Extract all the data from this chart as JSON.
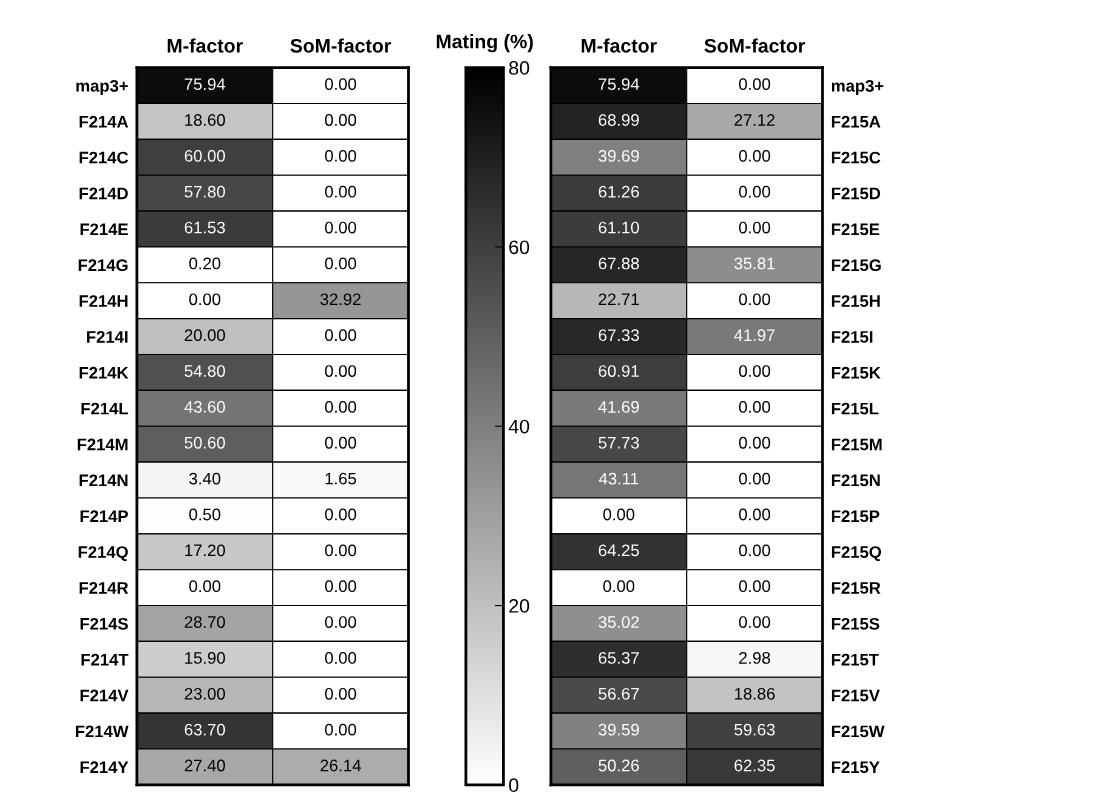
{
  "chart_data": [
    {
      "type": "heatmap",
      "categories": [
        "M-factor",
        "SoM-factor"
      ],
      "y_categories": [
        "map3+",
        "F214A",
        "F214C",
        "F214D",
        "F214E",
        "F214G",
        "F214H",
        "F214I",
        "F214K",
        "F214L",
        "F214M",
        "F214N",
        "F214P",
        "F214Q",
        "F214R",
        "F214S",
        "F214T",
        "F214V",
        "F214W",
        "F214Y"
      ],
      "cells": [
        [
          75.94,
          0.0
        ],
        [
          18.6,
          0.0
        ],
        [
          60.0,
          0.0
        ],
        [
          57.8,
          0.0
        ],
        [
          61.53,
          0.0
        ],
        [
          0.2,
          0.0
        ],
        [
          0.0,
          32.92
        ],
        [
          20.0,
          0.0
        ],
        [
          54.8,
          0.0
        ],
        [
          43.6,
          0.0
        ],
        [
          50.6,
          0.0
        ],
        [
          3.4,
          1.65
        ],
        [
          0.5,
          0.0
        ],
        [
          17.2,
          0.0
        ],
        [
          0.0,
          0.0
        ],
        [
          28.7,
          0.0
        ],
        [
          15.9,
          0.0
        ],
        [
          23.0,
          0.0
        ],
        [
          63.7,
          0.0
        ],
        [
          27.4,
          26.14
        ]
      ],
      "cell_labels": [
        [
          "75.94",
          "0.00"
        ],
        [
          "18.60",
          "0.00"
        ],
        [
          "60.00",
          "0.00"
        ],
        [
          "57.80",
          "0.00"
        ],
        [
          "61.53",
          "0.00"
        ],
        [
          "0.20",
          "0.00"
        ],
        [
          "0.00",
          "32.92"
        ],
        [
          "20.00",
          "0.00"
        ],
        [
          "54.80",
          "0.00"
        ],
        [
          "43.60",
          "0.00"
        ],
        [
          "50.60",
          "0.00"
        ],
        [
          "3.40",
          "1.65"
        ],
        [
          "0.50",
          "0.00"
        ],
        [
          "17.20",
          "0.00"
        ],
        [
          "0.00",
          "0.00"
        ],
        [
          "28.70",
          "0.00"
        ],
        [
          "15.90",
          "0.00"
        ],
        [
          "23.00",
          "0.00"
        ],
        [
          "63.70",
          "0.00"
        ],
        [
          "27.40",
          "26.14"
        ]
      ],
      "clim": [
        0,
        80
      ],
      "cticks": [
        0,
        20,
        40,
        60,
        80
      ],
      "clabel": "Mating (%)"
    },
    {
      "type": "heatmap",
      "categories": [
        "M-factor",
        "SoM-factor"
      ],
      "y_categories": [
        "map3+",
        "F215A",
        "F215C",
        "F215D",
        "F215E",
        "F215G",
        "F215H",
        "F215I",
        "F215K",
        "F215L",
        "F215M",
        "F215N",
        "F215P",
        "F215Q",
        "F215R",
        "F215S",
        "F215T",
        "F215V",
        "F215W",
        "F215Y"
      ],
      "cells": [
        [
          75.94,
          0.0
        ],
        [
          68.99,
          27.12
        ],
        [
          39.69,
          0.0
        ],
        [
          61.26,
          0.0
        ],
        [
          61.1,
          0.0
        ],
        [
          67.88,
          35.81
        ],
        [
          22.71,
          0.0
        ],
        [
          67.33,
          41.97
        ],
        [
          60.91,
          0.0
        ],
        [
          41.69,
          0.0
        ],
        [
          57.73,
          0.0
        ],
        [
          43.11,
          0.0
        ],
        [
          0.0,
          0.0
        ],
        [
          64.25,
          0.0
        ],
        [
          0.0,
          0.0
        ],
        [
          35.02,
          0.0
        ],
        [
          65.37,
          2.98
        ],
        [
          56.67,
          18.86
        ],
        [
          39.59,
          59.63
        ],
        [
          50.26,
          62.35
        ]
      ],
      "cell_labels": [
        [
          "75.94",
          "0.00"
        ],
        [
          "68.99",
          "27.12"
        ],
        [
          "39.69",
          "0.00"
        ],
        [
          "61.26",
          "0.00"
        ],
        [
          "61.10",
          "0.00"
        ],
        [
          "67.88",
          "35.81"
        ],
        [
          "22.71",
          "0.00"
        ],
        [
          "67.33",
          "41.97"
        ],
        [
          "60.91",
          "0.00"
        ],
        [
          "41.69",
          "0.00"
        ],
        [
          "57.73",
          "0.00"
        ],
        [
          "43.11",
          "0.00"
        ],
        [
          "0.00",
          "0.00"
        ],
        [
          "64.25",
          "0.00"
        ],
        [
          "0.00",
          "0.00"
        ],
        [
          "35.02",
          "0.00"
        ],
        [
          "65.37",
          "2.98"
        ],
        [
          "56.67",
          "18.86"
        ],
        [
          "39.59",
          "59.63"
        ],
        [
          "50.26",
          "62.35"
        ]
      ]
    }
  ]
}
